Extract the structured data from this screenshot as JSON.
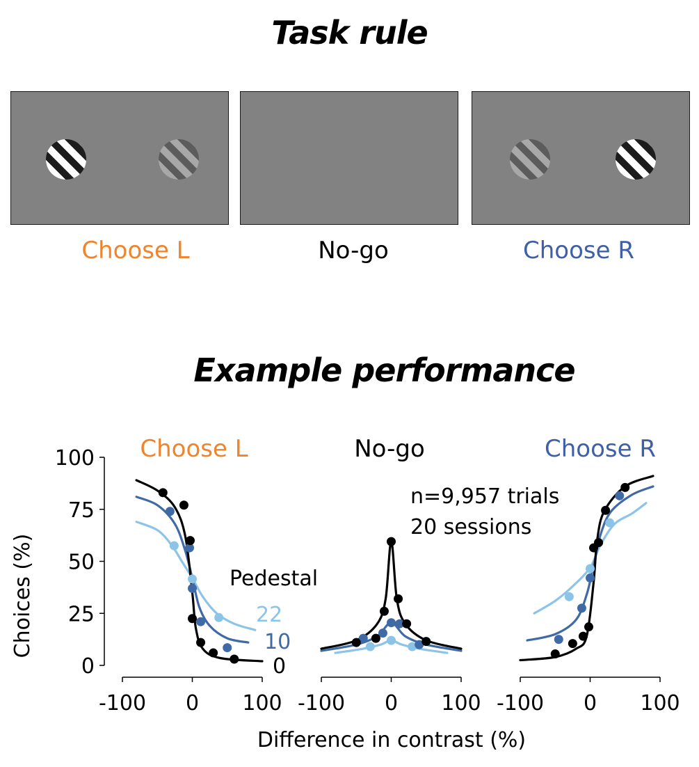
{
  "task_rule": {
    "title": "Task rule",
    "panels": [
      {
        "label": "Choose L",
        "color": "#f0842c",
        "gratings": [
          "high",
          "low"
        ]
      },
      {
        "label": "No-go",
        "color": "#000000",
        "gratings": []
      },
      {
        "label": "Choose R",
        "color": "#3f5fa6",
        "gratings": [
          "low",
          "high"
        ]
      }
    ]
  },
  "chart_data": {
    "type": "line",
    "title": "Example performance",
    "xlabel": "Difference in contrast (%)",
    "ylabel": "Choices (%)",
    "xlim": [
      -100,
      100
    ],
    "ylim": [
      0,
      100
    ],
    "xticks": [
      -100,
      0,
      100
    ],
    "yticks": [
      0,
      25,
      50,
      75,
      100
    ],
    "annotation_lines": [
      "n=9,957 trials",
      "20 sessions"
    ],
    "legend_title": "Pedestal",
    "pedestals": [
      {
        "name": "22",
        "color": "#8cc4e8"
      },
      {
        "name": "10",
        "color": "#3f6aa6"
      },
      {
        "name": "0",
        "color": "#000000"
      }
    ],
    "panels": [
      {
        "name": "Choose L",
        "color": "#f0842c",
        "series": [
          {
            "name": "22",
            "points": [
              [
                -26,
                57.5
              ],
              [
                0,
                41.5
              ],
              [
                38,
                23
              ]
            ],
            "curve": [
              [
                -80,
                69
              ],
              [
                -50,
                65
              ],
              [
                -30,
                58
              ],
              [
                -15,
                50
              ],
              [
                0,
                42
              ],
              [
                15,
                33
              ],
              [
                35,
                25
              ],
              [
                60,
                20
              ],
              [
                90,
                17
              ]
            ]
          },
          {
            "name": "10",
            "points": [
              [
                -32,
                74
              ],
              [
                -4,
                56.5
              ],
              [
                0,
                37
              ],
              [
                12,
                21
              ],
              [
                50,
                8.5
              ]
            ],
            "curve": [
              [
                -80,
                81
              ],
              [
                -50,
                77
              ],
              [
                -25,
                68
              ],
              [
                -10,
                55
              ],
              [
                0,
                42
              ],
              [
                10,
                28
              ],
              [
                25,
                19
              ],
              [
                50,
                13
              ],
              [
                80,
                11
              ]
            ]
          },
          {
            "name": "0",
            "points": [
              [
                -42,
                83
              ],
              [
                -12,
                77
              ],
              [
                -3,
                60
              ],
              [
                0,
                22.5
              ],
              [
                12,
                11
              ],
              [
                30,
                6
              ],
              [
                60,
                3
              ]
            ],
            "curve": [
              [
                -80,
                89
              ],
              [
                -50,
                84
              ],
              [
                -25,
                76
              ],
              [
                -10,
                62
              ],
              [
                0,
                35
              ],
              [
                5,
                18
              ],
              [
                15,
                8
              ],
              [
                40,
                3.5
              ],
              [
                100,
                2
              ]
            ]
          }
        ]
      },
      {
        "name": "No-go",
        "color": "#000000",
        "series": [
          {
            "name": "22",
            "points": [
              [
                -30,
                9
              ],
              [
                0,
                12
              ],
              [
                30,
                9
              ]
            ],
            "curve": [
              [
                -80,
                6
              ],
              [
                -40,
                8
              ],
              [
                -15,
                10
              ],
              [
                0,
                12
              ],
              [
                15,
                10
              ],
              [
                40,
                8
              ],
              [
                80,
                6
              ]
            ]
          },
          {
            "name": "10",
            "points": [
              [
                -40,
                13
              ],
              [
                -12,
                15.5
              ],
              [
                0,
                20.5
              ],
              [
                12,
                20
              ],
              [
                40,
                10
              ]
            ],
            "curve": [
              [
                -100,
                7
              ],
              [
                -50,
                10
              ],
              [
                -20,
                14
              ],
              [
                0,
                20.5
              ],
              [
                20,
                14
              ],
              [
                50,
                10
              ],
              [
                100,
                7
              ]
            ]
          },
          {
            "name": "0",
            "points": [
              [
                -50,
                11
              ],
              [
                -22,
                13
              ],
              [
                -10,
                26
              ],
              [
                0,
                59.5
              ],
              [
                10,
                32
              ],
              [
                22,
                20
              ],
              [
                50,
                11.5
              ]
            ],
            "curve": [
              [
                -100,
                8
              ],
              [
                -50,
                12
              ],
              [
                -20,
                20
              ],
              [
                -8,
                32
              ],
              [
                0,
                59.5
              ],
              [
                8,
                32
              ],
              [
                20,
                20
              ],
              [
                50,
                12
              ],
              [
                100,
                8
              ]
            ]
          }
        ]
      },
      {
        "name": "Choose R",
        "color": "#3f5fa6",
        "series": [
          {
            "name": "22",
            "points": [
              [
                -30,
                33
              ],
              [
                0,
                46.5
              ],
              [
                28,
                68.5
              ]
            ],
            "curve": [
              [
                -80,
                25
              ],
              [
                -50,
                31
              ],
              [
                -25,
                38
              ],
              [
                0,
                47
              ],
              [
                15,
                58
              ],
              [
                35,
                68
              ],
              [
                60,
                73
              ],
              [
                80,
                78
              ]
            ]
          },
          {
            "name": "10",
            "points": [
              [
                -45,
                12.5
              ],
              [
                -12,
                27.5
              ],
              [
                0,
                42
              ],
              [
                12,
                59
              ],
              [
                42,
                81.5
              ]
            ],
            "curve": [
              [
                -90,
                12
              ],
              [
                -50,
                15
              ],
              [
                -20,
                22
              ],
              [
                -5,
                34
              ],
              [
                5,
                48
              ],
              [
                15,
                63
              ],
              [
                30,
                74
              ],
              [
                60,
                82
              ],
              [
                90,
                86
              ]
            ]
          },
          {
            "name": "0",
            "points": [
              [
                -50,
                5.5
              ],
              [
                -25,
                10.5
              ],
              [
                -10,
                14
              ],
              [
                -2,
                18.5
              ],
              [
                5,
                56.5
              ],
              [
                12,
                59
              ],
              [
                22,
                74.5
              ],
              [
                50,
                85.5
              ]
            ],
            "curve": [
              [
                -100,
                2.5
              ],
              [
                -50,
                4
              ],
              [
                -20,
                8
              ],
              [
                -5,
                14
              ],
              [
                5,
                40
              ],
              [
                10,
                60
              ],
              [
                20,
                74
              ],
              [
                50,
                86
              ],
              [
                90,
                91
              ]
            ]
          }
        ]
      }
    ]
  }
}
